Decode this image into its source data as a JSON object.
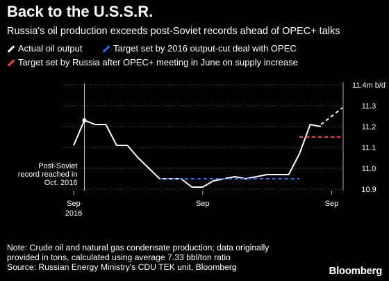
{
  "title": "Back to the U.S.S.R.",
  "subtitle": "Russia's oil production exceeds post-Soviet records ahead of OPEC+ talks",
  "legend": [
    {
      "label": "Actual oil output",
      "color": "#ffffff"
    },
    {
      "label": "Target set by 2016 output-cut deal with OPEC",
      "color": "#2d6cf6"
    },
    {
      "label": "Target set by Russia after OPEC+ meeting in June on supply increase",
      "color": "#ff4040"
    }
  ],
  "annotation": "Post-Soviet record reached in Oct. 2016",
  "note": [
    "Note: Crude oil and natural gas condensate production; data originally",
    "provided in tons, calculated using average 7.33 bbl/ton ratio",
    "Source: Russian Energy Ministry's CDU TEK unit, Bloomberg"
  ],
  "logo": "Bloomberg",
  "chart_data": {
    "type": "line",
    "y_unit": "m b/d",
    "ylim": [
      10.9,
      11.4
    ],
    "y_ticks": [
      "11.4m b/d",
      "11.3",
      "11.2",
      "11.1",
      "11.0",
      "10.9"
    ],
    "x_ticks": [
      {
        "label": "Sep",
        "sublabel": "2016"
      },
      {
        "label": "Sep",
        "sublabel": ""
      },
      {
        "label": "Sep",
        "sublabel": ""
      }
    ],
    "grid": true,
    "months": [
      "2016-09",
      "2016-10",
      "2016-11",
      "2016-12",
      "2017-01",
      "2017-02",
      "2017-03",
      "2017-04",
      "2017-05",
      "2017-06",
      "2017-07",
      "2017-08",
      "2017-09",
      "2017-10",
      "2017-11",
      "2017-12",
      "2018-01",
      "2018-02",
      "2018-03",
      "2018-04",
      "2018-05",
      "2018-06",
      "2018-07",
      "2018-08",
      "2018-09",
      "2018-10"
    ],
    "series": [
      {
        "name": "Actual oil output",
        "color": "#ffffff",
        "style": "solid",
        "values": [
          11.11,
          11.23,
          11.21,
          11.21,
          11.11,
          11.11,
          11.05,
          11.0,
          10.95,
          10.95,
          10.95,
          10.91,
          10.91,
          10.94,
          10.95,
          10.96,
          10.95,
          10.96,
          10.97,
          10.97,
          10.97,
          11.07,
          11.21,
          11.2,
          null,
          null
        ]
      },
      {
        "name": "Actual oil output (projected)",
        "color": "#ffffff",
        "style": "dashed",
        "values": [
          null,
          null,
          null,
          null,
          null,
          null,
          null,
          null,
          null,
          null,
          null,
          null,
          null,
          null,
          null,
          null,
          null,
          null,
          null,
          null,
          null,
          null,
          null,
          11.21,
          11.25,
          11.29
        ]
      },
      {
        "name": "Target set by 2016 output-cut deal with OPEC",
        "color": "#2d6cf6",
        "style": "dashed",
        "values": [
          null,
          null,
          null,
          null,
          null,
          null,
          null,
          null,
          10.95,
          10.95,
          10.95,
          10.95,
          10.95,
          10.95,
          10.95,
          10.95,
          10.95,
          10.95,
          10.95,
          10.95,
          10.95,
          10.95,
          null,
          null,
          null,
          null
        ]
      },
      {
        "name": "Target set by Russia after OPEC+ meeting in June on supply increase",
        "color": "#ff4040",
        "style": "dashed",
        "values": [
          null,
          null,
          null,
          null,
          null,
          null,
          null,
          null,
          null,
          null,
          null,
          null,
          null,
          null,
          null,
          null,
          null,
          null,
          null,
          null,
          null,
          11.15,
          11.15,
          11.15,
          11.15,
          11.15
        ]
      }
    ],
    "marker": {
      "month": "2016-10",
      "value": 11.23
    }
  }
}
